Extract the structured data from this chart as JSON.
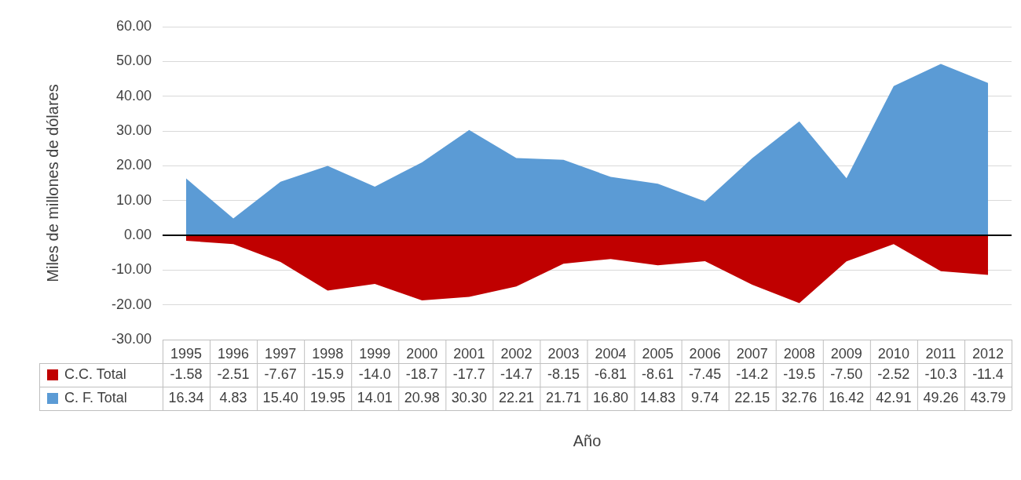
{
  "chart_data": {
    "type": "area",
    "xlabel": "Año",
    "ylabel": "Miles de millones de dólares",
    "categories": [
      "1995",
      "1996",
      "1997",
      "1998",
      "1999",
      "2000",
      "2001",
      "2002",
      "2003",
      "2004",
      "2005",
      "2006",
      "2007",
      "2008",
      "2009",
      "2010",
      "2011",
      "2012"
    ],
    "series": [
      {
        "name": "C.C. Total",
        "color": "#c00000",
        "values": [
          -1.58,
          -2.51,
          -7.67,
          -15.9,
          -14.0,
          -18.7,
          -17.7,
          -14.7,
          -8.15,
          -6.81,
          -8.61,
          -7.45,
          -14.2,
          -19.5,
          -7.5,
          -2.52,
          -10.3,
          -11.4
        ],
        "value_labels": [
          "-1.58",
          "-2.51",
          "-7.67",
          "-15.9",
          "-14.0",
          "-18.7",
          "-17.7",
          "-14.7",
          "-8.15",
          "-6.81",
          "-8.61",
          "-7.45",
          "-14.2",
          "-19.5",
          "-7.50",
          "-2.52",
          "-10.3",
          "-11.4"
        ]
      },
      {
        "name": "C. F. Total",
        "color": "#5b9bd5",
        "values": [
          16.34,
          4.83,
          15.4,
          19.95,
          14.01,
          20.98,
          30.3,
          22.21,
          21.71,
          16.8,
          14.83,
          9.74,
          22.15,
          32.76,
          16.42,
          42.91,
          49.26,
          43.79
        ],
        "value_labels": [
          "16.34",
          "4.83",
          "15.40",
          "19.95",
          "14.01",
          "20.98",
          "30.30",
          "22.21",
          "21.71",
          "16.80",
          "14.83",
          "9.74",
          "22.15",
          "32.76",
          "16.42",
          "42.91",
          "49.26",
          "43.79"
        ]
      }
    ],
    "ylim": [
      -30,
      60
    ],
    "yticks": [
      {
        "value": -30,
        "label": "-30.00"
      },
      {
        "value": -20,
        "label": "-20.00"
      },
      {
        "value": -10,
        "label": "-10.00"
      },
      {
        "value": 0,
        "label": "0.00"
      },
      {
        "value": 10,
        "label": "10.00"
      },
      {
        "value": 20,
        "label": "20.00"
      },
      {
        "value": 30,
        "label": "30.00"
      },
      {
        "value": 40,
        "label": "40.00"
      },
      {
        "value": 50,
        "label": "50.00"
      },
      {
        "value": 60,
        "label": "60.00"
      }
    ],
    "ref_lines": [
      {
        "axis": "y",
        "value": 0,
        "color": "#000000"
      }
    ],
    "grid": "y",
    "legend": "bottom"
  }
}
